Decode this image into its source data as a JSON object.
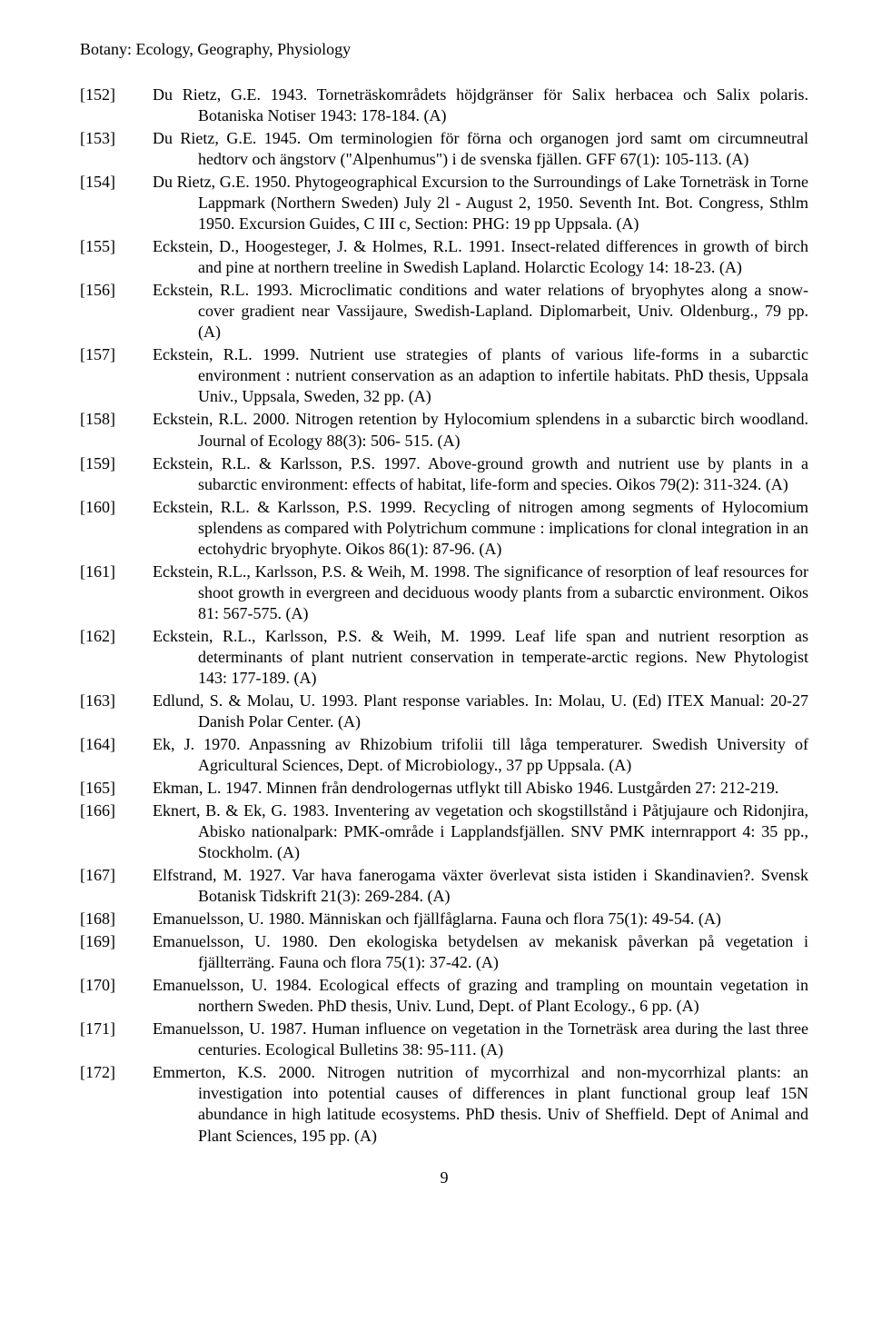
{
  "header": "Botany: Ecology, Geography, Physiology",
  "pageNumber": "9",
  "entries": [
    {
      "num": "[152]",
      "text": "Du Rietz, G.E. 1943. Torneträskområdets höjdgränser för Salix herbacea och Salix polaris. Botaniska Notiser 1943: 178-184. (A)"
    },
    {
      "num": "[153]",
      "text": "Du Rietz, G.E. 1945. Om terminologien för förna och organogen jord samt om circumneutral hedtorv och ängstorv (\"Alpenhumus\") i de svenska fjällen. GFF 67(1): 105-113. (A)"
    },
    {
      "num": "[154]",
      "text": "Du Rietz, G.E. 1950. Phytogeographical Excursion to the Surroundings of Lake Torneträsk in Torne Lappmark (Northern Sweden) July 2l - August 2, 1950. Seventh Int. Bot. Congress, Sthlm 1950. Excursion Guides, C III c, Section: PHG: 19 pp Uppsala. (A)"
    },
    {
      "num": "[155]",
      "text": "Eckstein, D., Hoogesteger, J. & Holmes, R.L. 1991. Insect-related differences in growth of birch and pine at northern treeline in Swedish Lapland. Holarctic Ecology 14: 18-23. (A)"
    },
    {
      "num": "[156]",
      "text": "Eckstein, R.L. 1993. Microclimatic conditions and water relations of bryophytes along a snow-cover gradient near Vassijaure, Swedish-Lapland. Diplomarbeit, Univ. Oldenburg., 79 pp. (A)"
    },
    {
      "num": "[157]",
      "text": "Eckstein, R.L. 1999. Nutrient use strategies of plants of various life-forms in a subarctic environment : nutrient conservation as an adaption to infertile habitats. PhD thesis, Uppsala Univ., Uppsala, Sweden, 32 pp. (A)"
    },
    {
      "num": "[158]",
      "text": "Eckstein, R.L. 2000. Nitrogen retention by Hylocomium splendens in a subarctic birch woodland. Journal of Ecology 88(3): 506- 515. (A)"
    },
    {
      "num": "[159]",
      "text": "Eckstein, R.L. & Karlsson, P.S. 1997. Above-ground growth and nutrient use by plants in a subarctic environment: effects of habitat, life-form and species. Oikos 79(2): 311-324. (A)"
    },
    {
      "num": "[160]",
      "text": "Eckstein, R.L. & Karlsson, P.S. 1999. Recycling of nitrogen among segments of Hylocomium splendens as compared with Polytrichum commune : implications for clonal integration in an ectohydric bryophyte. Oikos 86(1): 87-96. (A)"
    },
    {
      "num": "[161]",
      "text": "Eckstein, R.L., Karlsson, P.S. & Weih, M. 1998. The significance of resorption of leaf resources for shoot growth in evergreen and deciduous woody plants from a subarctic environment. Oikos 81: 567-575. (A)"
    },
    {
      "num": "[162]",
      "text": "Eckstein, R.L., Karlsson, P.S. & Weih, M. 1999. Leaf life span and nutrient resorption as determinants of plant nutrient conservation in temperate-arctic regions. New Phytologist 143: 177-189. (A)"
    },
    {
      "num": "[163]",
      "text": "Edlund, S. & Molau, U. 1993. Plant response variables. In: Molau, U. (Ed) ITEX Manual: 20-27 Danish Polar Center. (A)"
    },
    {
      "num": "[164]",
      "text": "Ek, J. 1970. Anpassning av Rhizobium trifolii till låga temperaturer. Swedish University of Agricultural Sciences, Dept. of Microbiology., 37 pp Uppsala. (A)"
    },
    {
      "num": "[165]",
      "text": "Ekman, L. 1947. Minnen från dendrologernas utflykt till Abisko 1946. Lustgården 27: 212-219."
    },
    {
      "num": "[166]",
      "text": "Eknert, B. & Ek, G. 1983. Inventering av vegetation och skogstillstånd i Påtjujaure och Ridonjira, Abisko nationalpark: PMK-område i Lapplandsfjällen. SNV PMK internrapport 4: 35 pp., Stockholm. (A)"
    },
    {
      "num": "[167]",
      "text": "Elfstrand, M. 1927. Var hava fanerogama växter överlevat sista istiden i Skandinavien?. Svensk Botanisk Tidskrift 21(3): 269-284. (A)"
    },
    {
      "num": "[168]",
      "text": "Emanuelsson, U. 1980. Människan och fjällfåglarna. Fauna och flora 75(1): 49-54. (A)"
    },
    {
      "num": "[169]",
      "text": "Emanuelsson, U. 1980. Den ekologiska betydelsen av mekanisk påverkan på vegetation i fjällterräng. Fauna och flora 75(1): 37-42. (A)"
    },
    {
      "num": "[170]",
      "text": "Emanuelsson, U. 1984. Ecological effects of grazing and trampling on mountain vegetation in northern Sweden. PhD thesis, Univ. Lund, Dept. of Plant Ecology., 6 pp. (A)"
    },
    {
      "num": "[171]",
      "text": "Emanuelsson, U. 1987. Human influence on vegetation in the Torneträsk area during the last three centuries. Ecological Bulletins 38: 95-111. (A)"
    },
    {
      "num": "[172]",
      "text": "Emmerton, K.S. 2000. Nitrogen nutrition of mycorrhizal and non-mycorrhizal plants: an investigation into potential causes of differences in plant functional group leaf 15N abundance in high latitude ecosystems. PhD thesis. Univ of Sheffield. Dept of Animal and Plant Sciences, 195 pp. (A)"
    }
  ]
}
